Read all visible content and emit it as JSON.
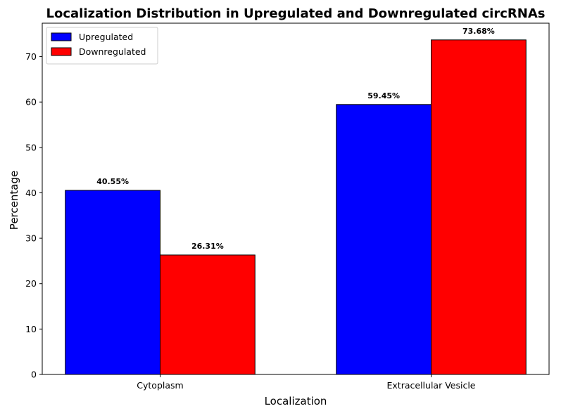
{
  "chart_data": {
    "type": "bar",
    "title": "Localization Distribution in Upregulated and Downregulated circRNAs",
    "xlabel": "Localization",
    "ylabel": "Percentage",
    "categories": [
      "Cytoplasm",
      "Extracellular Vesicle"
    ],
    "series": [
      {
        "name": "Upregulated",
        "color": "#0000ff",
        "values": [
          40.55,
          59.45
        ],
        "labels": [
          "40.55%",
          "59.45%"
        ]
      },
      {
        "name": "Downregulated",
        "color": "#ff0000",
        "values": [
          26.31,
          73.68
        ],
        "labels": [
          "26.31%",
          "73.68%"
        ]
      }
    ],
    "ylim": [
      0,
      77.364
    ],
    "yticks": [
      0,
      10,
      20,
      30,
      40,
      50,
      60,
      70
    ],
    "ytick_labels": [
      "0",
      "10",
      "20",
      "30",
      "40",
      "50",
      "60",
      "70"
    ],
    "grid": false,
    "legend_position": "top-left"
  }
}
